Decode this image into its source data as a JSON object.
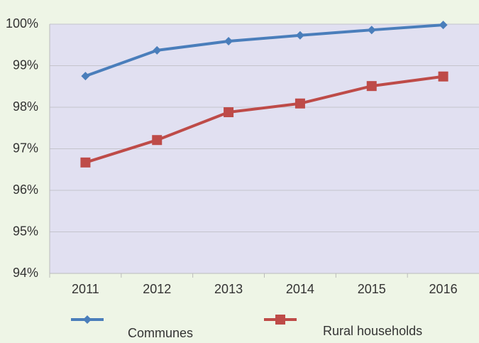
{
  "chart_data": {
    "type": "line",
    "categories": [
      "2011",
      "2012",
      "2013",
      "2014",
      "2015",
      "2016"
    ],
    "series": [
      {
        "name": "Communes",
        "color": "#4a7ebb",
        "marker": "diamond",
        "values": [
          98.75,
          99.37,
          99.59,
          99.73,
          99.86,
          99.98
        ]
      },
      {
        "name": "Rural households",
        "color": "#be4b48",
        "marker": "square",
        "values": [
          96.67,
          97.21,
          97.88,
          98.09,
          98.51,
          98.74
        ]
      }
    ],
    "ylim": [
      94,
      100
    ],
    "yticks": [
      {
        "value": 94,
        "label": "94%"
      },
      {
        "value": 95,
        "label": "95%"
      },
      {
        "value": 96,
        "label": "96%"
      },
      {
        "value": 97,
        "label": "97%"
      },
      {
        "value": 98,
        "label": "98%"
      },
      {
        "value": 99,
        "label": "99%"
      },
      {
        "value": 100,
        "label": "100%"
      }
    ],
    "grid": true,
    "legend": "bottom"
  }
}
